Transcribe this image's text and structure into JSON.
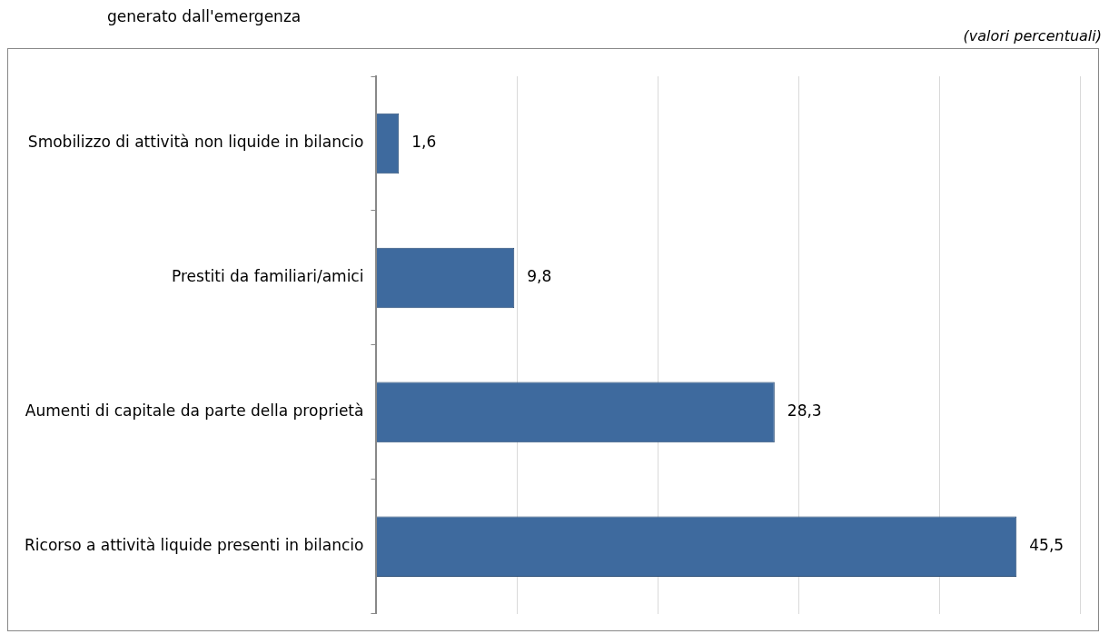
{
  "chart_data": {
    "type": "bar",
    "orientation": "horizontal",
    "title": "generato dall'emergenza",
    "subtitle": "(valori percentuali)",
    "categories": [
      "Smobilizzo di attività non liquide in bilancio",
      "Prestiti da familiari/amici",
      "Aumenti di capitale da parte della proprietà",
      "Ricorso a attività liquide presenti in bilancio"
    ],
    "values": [
      1.6,
      9.8,
      28.3,
      45.5
    ],
    "value_labels": [
      "1,6",
      "9,8",
      "28,3",
      "45,5"
    ],
    "color": "#3e6a9e",
    "grid": "x",
    "legend": false,
    "tick_labels": "y"
  }
}
